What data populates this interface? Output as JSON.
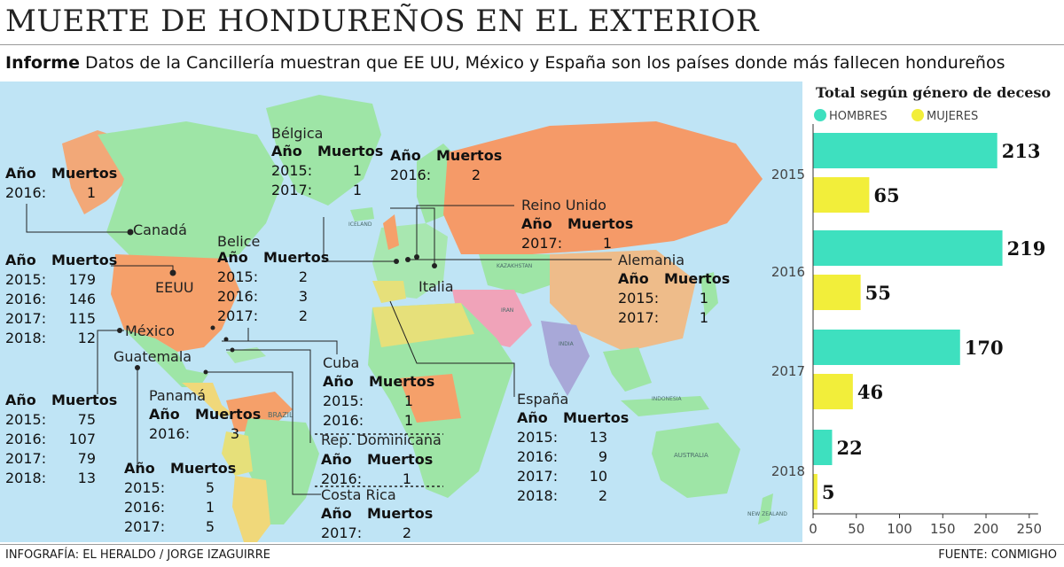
{
  "header": {
    "title": "MUERTE DE HONDUREÑOS EN EL EXTERIOR",
    "subtitle_lead": "Informe",
    "subtitle_text": " Datos de la Cancillería muestran que EE UU, México y España son los países donde más fallecen hondureños"
  },
  "map_labels": {
    "canada": "Canadá",
    "eeuu": "EEUU",
    "mexico": "México",
    "guatemala": "Guatemala",
    "belice": "Belice",
    "panama": "Panamá",
    "cuba": "Cuba",
    "rep_dominicana": "Rep. Dominicana",
    "costa_rica": "Costa Rica",
    "belgica": "Bélgica",
    "reino_unido": "Reino Unido",
    "alemania": "Alemania",
    "italia": "Italia",
    "espana": "España",
    "brazil": "BRAZIL",
    "australia": "AUSTRALIA",
    "new_zealand": "NEW ZEALAND",
    "india": "INDIA",
    "indonesia": "INDONESIA",
    "kazakhstan": "KAZAKHSTAN",
    "iran": "IRAN",
    "iceland": "ICELAND"
  },
  "col_headers": {
    "year": "Año",
    "deaths": "Muertos"
  },
  "deaths_by_country": {
    "canada": [
      {
        "year": "2016:",
        "deaths": "1"
      }
    ],
    "eeuu": [
      {
        "year": "2015:",
        "deaths": "179"
      },
      {
        "year": "2016:",
        "deaths": "146"
      },
      {
        "year": "2017:",
        "deaths": "115"
      },
      {
        "year": "2018:",
        "deaths": "12"
      }
    ],
    "mexico": [
      {
        "year": "2015:",
        "deaths": "75"
      },
      {
        "year": "2016:",
        "deaths": "107"
      },
      {
        "year": "2017:",
        "deaths": "79"
      },
      {
        "year": "2018:",
        "deaths": "13"
      }
    ],
    "guatemala": [
      {
        "year": "2015:",
        "deaths": "5"
      },
      {
        "year": "2016:",
        "deaths": "1"
      },
      {
        "year": "2017:",
        "deaths": "5"
      }
    ],
    "belice": [
      {
        "year": "2015:",
        "deaths": "2"
      },
      {
        "year": "2016:",
        "deaths": "3"
      },
      {
        "year": "2017:",
        "deaths": "2"
      }
    ],
    "panama": [
      {
        "year": "2016:",
        "deaths": "3"
      }
    ],
    "cuba": [
      {
        "year": "2015:",
        "deaths": "1"
      },
      {
        "year": "2016:",
        "deaths": "1"
      }
    ],
    "rep_dominicana": [
      {
        "year": "2016:",
        "deaths": "1"
      }
    ],
    "costa_rica": [
      {
        "year": "2017:",
        "deaths": "2"
      }
    ],
    "belgica": [
      {
        "year": "2015:",
        "deaths": "1"
      },
      {
        "year": "2017:",
        "deaths": "1"
      }
    ],
    "italia": [
      {
        "year": "2016:",
        "deaths": "2"
      }
    ],
    "reino_unido": [
      {
        "year": "2017:",
        "deaths": "1"
      }
    ],
    "alemania": [
      {
        "year": "2015:",
        "deaths": "1"
      },
      {
        "year": "2017:",
        "deaths": "1"
      }
    ],
    "espana": [
      {
        "year": "2015:",
        "deaths": "13"
      },
      {
        "year": "2016:",
        "deaths": "9"
      },
      {
        "year": "2017:",
        "deaths": "10"
      },
      {
        "year": "2018:",
        "deaths": "2"
      }
    ]
  },
  "chart_data": {
    "type": "bar",
    "orientation": "horizontal",
    "title": "Total según género de deceso",
    "categories": [
      "2015",
      "2016",
      "2017",
      "2018"
    ],
    "series": [
      {
        "name": "HOMBRES",
        "color": "#3ee0bf",
        "values": [
          213,
          219,
          170,
          22
        ]
      },
      {
        "name": "MUJERES",
        "color": "#f2ee3a",
        "values": [
          65,
          55,
          46,
          5
        ]
      }
    ],
    "xlim": [
      0,
      250
    ],
    "xticks": [
      0,
      50,
      100,
      150,
      200,
      250
    ],
    "grid": false,
    "legend": "top"
  },
  "footer": {
    "credit": "INFOGRAFÍA: EL HERALDO / JORGE IZAGUIRRE",
    "source": "FUENTE: CONMIGHO"
  },
  "colors": {
    "ocean": "#bfe4f5",
    "land_green": "#9ee5a6",
    "land_orange": "#f59a68",
    "land_tan": "#eebc8a",
    "land_pink": "#f0a3b9",
    "land_yellow": "#e6e07a"
  }
}
